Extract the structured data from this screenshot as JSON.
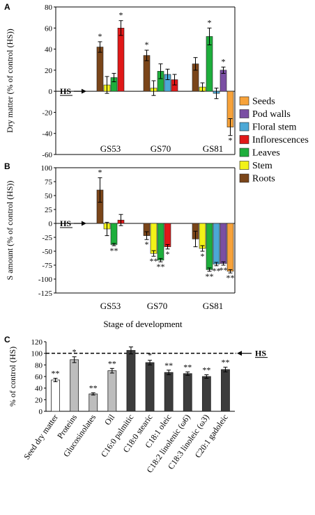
{
  "colors": {
    "Seeds": "#f7a23a",
    "Pod walls": "#7a4fa3",
    "Floral stem": "#4ca8d6",
    "Inflorescences": "#e01818",
    "Leaves": "#1eae3c",
    "Stem": "#f2f218",
    "Roots": "#7a4519",
    "white_bar": "#ffffff",
    "light_bar": "#bdbdbd",
    "dark_bar": "#3c3c3c"
  },
  "annotations": {
    "hs_label": "HS"
  },
  "legend_entries": [
    "Seeds",
    "Pod walls",
    "Floral stem",
    "Inflorescences",
    "Leaves",
    "Stem",
    "Roots"
  ],
  "chart_data": [
    {
      "panel": "A",
      "type": "bar",
      "ylabel": "Dry matter (% of control (HS))",
      "xlabel": "",
      "ylim": [
        -60,
        80
      ],
      "yticks": [
        -60,
        -40,
        -20,
        0,
        20,
        40,
        60,
        80
      ],
      "categories": [
        "GS53",
        "GS70",
        "GS81"
      ],
      "groups": [
        {
          "category": "GS53",
          "bars": [
            {
              "series": "Roots",
              "value": 42,
              "err": 5,
              "sig": "*"
            },
            {
              "series": "Stem",
              "value": 6,
              "err": 8,
              "sig": ""
            },
            {
              "series": "Leaves",
              "value": 13,
              "err": 4,
              "sig": ""
            },
            {
              "series": "Inflorescences",
              "value": 60,
              "err": 7,
              "sig": "*"
            }
          ]
        },
        {
          "category": "GS70",
          "bars": [
            {
              "series": "Roots",
              "value": 34,
              "err": 5,
              "sig": "*"
            },
            {
              "series": "Stem",
              "value": 3,
              "err": 7,
              "sig": ""
            },
            {
              "series": "Leaves",
              "value": 19,
              "err": 7,
              "sig": ""
            },
            {
              "series": "Floral stem",
              "value": 16,
              "err": 5,
              "sig": ""
            },
            {
              "series": "Inflorescences",
              "value": 11,
              "err": 5,
              "sig": ""
            }
          ]
        },
        {
          "category": "GS81",
          "bars": [
            {
              "series": "Roots",
              "value": 26,
              "err": 6,
              "sig": ""
            },
            {
              "series": "Stem",
              "value": 4,
              "err": 4,
              "sig": ""
            },
            {
              "series": "Leaves",
              "value": 52,
              "err": 8,
              "sig": "*"
            },
            {
              "series": "Floral stem",
              "value": -2,
              "err": 5,
              "sig": ""
            },
            {
              "series": "Pod walls",
              "value": 20,
              "err": 3,
              "sig": "*"
            },
            {
              "series": "Seeds",
              "value": -34,
              "err": 8,
              "sig": "*"
            }
          ]
        }
      ]
    },
    {
      "panel": "B",
      "type": "bar",
      "ylabel": "S amount (% of control (HS))",
      "xlabel": "Stage of development",
      "ylim": [
        -125,
        100
      ],
      "yticks": [
        -125,
        -100,
        -75,
        -50,
        -25,
        0,
        25,
        50,
        75,
        100
      ],
      "categories": [
        "GS53",
        "GS70",
        "GS81"
      ],
      "groups": [
        {
          "category": "GS53",
          "bars": [
            {
              "series": "Roots",
              "value": 60,
              "err": 22,
              "sig": "*"
            },
            {
              "series": "Stem",
              "value": -10,
              "err": 12,
              "sig": ""
            },
            {
              "series": "Leaves",
              "value": -38,
              "err": 2,
              "sig": "**"
            },
            {
              "series": "Inflorescences",
              "value": 6,
              "err": 10,
              "sig": ""
            }
          ]
        },
        {
          "category": "GS70",
          "bars": [
            {
              "series": "Roots",
              "value": -22,
              "err": 7,
              "sig": "*"
            },
            {
              "series": "Stem",
              "value": -54,
              "err": 5,
              "sig": "**"
            },
            {
              "series": "Leaves",
              "value": -66,
              "err": 3,
              "sig": "**"
            },
            {
              "series": "Inflorescences",
              "value": -42,
              "err": 4,
              "sig": "*"
            }
          ]
        },
        {
          "category": "GS81",
          "bars": [
            {
              "series": "Roots",
              "value": -28,
              "err": 14,
              "sig": ""
            },
            {
              "series": "Stem",
              "value": -45,
              "err": 5,
              "sig": "*"
            },
            {
              "series": "Leaves",
              "value": -83,
              "err": 3,
              "sig": "**"
            },
            {
              "series": "Floral stem",
              "value": -73,
              "err": 3,
              "sig": "**"
            },
            {
              "series": "Pod walls",
              "value": -72,
              "err": 3,
              "sig": "**"
            },
            {
              "series": "Seeds",
              "value": -86,
              "err": 3,
              "sig": "**"
            }
          ]
        }
      ]
    },
    {
      "panel": "C",
      "type": "bar",
      "ylabel": "% of control (HS)",
      "xlabel": "",
      "ylim": [
        0,
        120
      ],
      "yticks": [
        0,
        20,
        40,
        60,
        80,
        100,
        120
      ],
      "reference_line": 100,
      "categories": [
        "Seed dry matter",
        "Proteins",
        "Glucosinolates",
        "Oil",
        "C16:0 palmitic",
        "C18:0 stearic",
        "C18:1 oleic",
        "C18:2 linolenic (ω6)",
        "C18:3 linoleic (ω3)",
        "C20:1 gadoleic"
      ],
      "values": [
        54,
        89,
        30,
        70,
        105,
        84,
        67,
        65,
        60,
        72
      ],
      "errors": [
        3,
        5,
        2,
        4,
        6,
        4,
        4,
        3,
        3,
        4
      ],
      "significance": [
        "**",
        "*",
        "**",
        "**",
        "",
        "*",
        "**",
        "**",
        "**",
        "**"
      ],
      "bar_color_keys": [
        "white_bar",
        "light_bar",
        "light_bar",
        "light_bar",
        "dark_bar",
        "dark_bar",
        "dark_bar",
        "dark_bar",
        "dark_bar",
        "dark_bar"
      ]
    }
  ]
}
